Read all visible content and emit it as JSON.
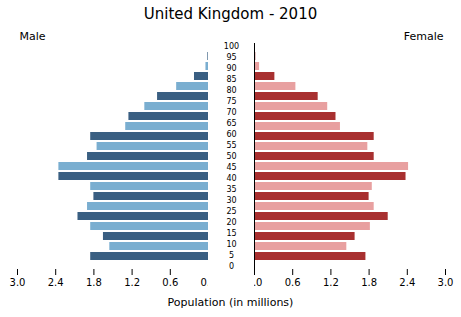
{
  "chart_data": {
    "type": "bar",
    "orientation": "horizontal",
    "title": "United Kingdom - 2010",
    "xlabel": "Population (in millions)",
    "categories": [
      0,
      5,
      10,
      15,
      20,
      25,
      30,
      35,
      40,
      45,
      50,
      55,
      60,
      65,
      70,
      75,
      80,
      85,
      90,
      95,
      100
    ],
    "series": [
      {
        "name": "Male",
        "values": [
          1.85,
          1.55,
          1.65,
          1.85,
          2.05,
          1.9,
          1.8,
          1.85,
          2.35,
          2.35,
          1.9,
          1.75,
          1.85,
          1.3,
          1.25,
          1.0,
          0.8,
          0.5,
          0.22,
          0.04,
          0.01
        ],
        "colors": [
          "#3a5f82",
          "#7aaed0",
          "#3a5f82",
          "#7aaed0",
          "#3a5f82",
          "#7aaed0",
          "#3a5f82",
          "#7aaed0",
          "#3a5f82",
          "#7aaed0",
          "#3a5f82",
          "#7aaed0",
          "#3a5f82",
          "#7aaed0",
          "#3a5f82",
          "#7aaed0",
          "#3a5f82",
          "#7aaed0",
          "#3a5f82",
          "#7aaed0",
          "#3a5f82"
        ]
      },
      {
        "name": "Female",
        "values": [
          1.75,
          1.45,
          1.58,
          1.82,
          2.1,
          1.88,
          1.8,
          1.85,
          2.38,
          2.42,
          1.88,
          1.78,
          1.88,
          1.35,
          1.28,
          1.15,
          1.0,
          0.65,
          0.32,
          0.08,
          0.02
        ],
        "colors": [
          "#a83030",
          "#e8a0a0",
          "#a83030",
          "#e8a0a0",
          "#a83030",
          "#e8a0a0",
          "#a83030",
          "#e8a0a0",
          "#a83030",
          "#e8a0a0",
          "#a83030",
          "#e8a0a0",
          "#a83030",
          "#e8a0a0",
          "#a83030",
          "#e8a0a0",
          "#a83030",
          "#e8a0a0",
          "#a83030",
          "#e8a0a0",
          "#a83030"
        ]
      }
    ],
    "xlim": [
      0,
      3.0
    ],
    "xticks": [
      0,
      0.6,
      1.2,
      1.8,
      2.4,
      3
    ],
    "grid": false
  }
}
